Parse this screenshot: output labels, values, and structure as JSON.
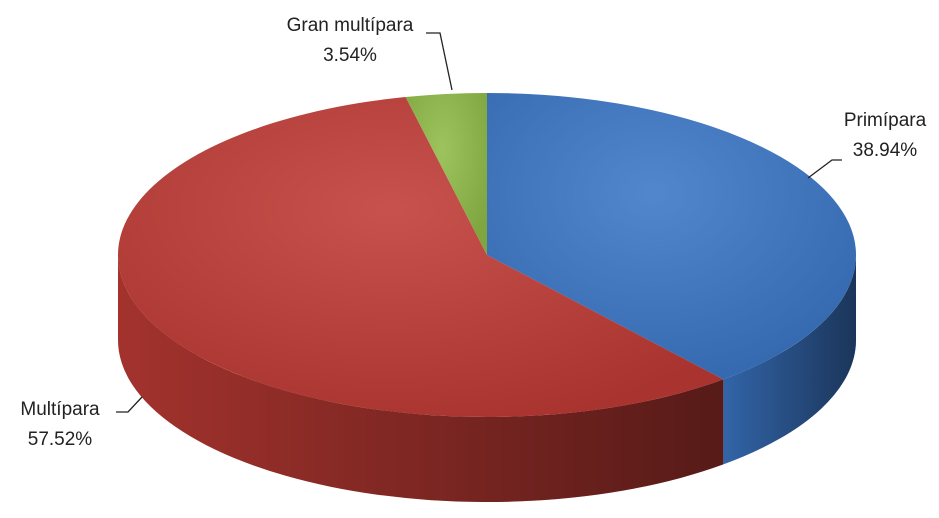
{
  "chart_data": {
    "type": "pie",
    "categories": [
      "Primípara",
      "Multípara",
      "Gran multípara"
    ],
    "values": [
      38.94,
      57.52,
      3.54
    ],
    "value_labels": [
      "38.94%",
      "57.52%",
      "3.54%"
    ],
    "colors": [
      "#3b76c6",
      "#c03b35",
      "#8fbb47"
    ]
  }
}
